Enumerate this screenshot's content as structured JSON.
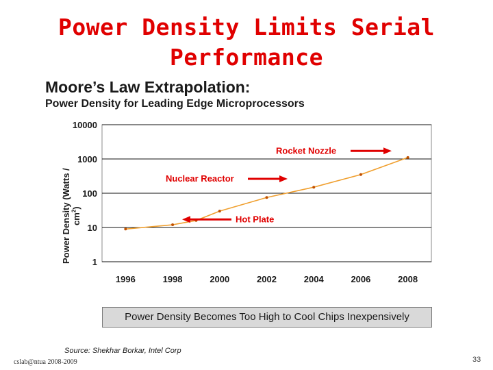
{
  "slide": {
    "title_line1": "Power Density Limits Serial",
    "title_line2": "Performance",
    "footer_left": "cslab@ntua 2008-2009",
    "page_number": "33"
  },
  "chart_data": {
    "type": "line",
    "title": "Moore’s Law Extrapolation:",
    "subtitle": "Power Density for Leading Edge Microprocessors",
    "ylabel": "Power Density (Watts / cm2)",
    "xlabel": "",
    "y_scale": "log",
    "ylim": [
      1,
      10000
    ],
    "xlim": [
      1995,
      2009
    ],
    "y_ticks": [
      10000,
      1000,
      100,
      10,
      1
    ],
    "y_tick_labels": [
      "10000",
      "1000",
      "100",
      "10",
      "1"
    ],
    "x_ticks": [
      1996,
      1998,
      2000,
      2002,
      2004,
      2006,
      2008
    ],
    "x_tick_labels": [
      "1996",
      "1998",
      "2000",
      "2002",
      "2004",
      "2006",
      "2008"
    ],
    "grid": "horizontal",
    "series": [
      {
        "color": "#f0a030",
        "x": [
          1996,
          1998,
          1999,
          2000,
          2002,
          2004,
          2006,
          2008
        ],
        "y": [
          9,
          12,
          16,
          30,
          75,
          150,
          350,
          1100
        ]
      }
    ],
    "annotations": [
      {
        "text": "Rocket Nozzle",
        "arrow": "right",
        "level": 1300
      },
      {
        "text": "Nuclear Reactor",
        "arrow": "right",
        "level": 200
      },
      {
        "text": "Hot Plate",
        "arrow": "left",
        "level": 13
      }
    ],
    "banner": "Power Density Becomes Too High to Cool Chips Inexpensively",
    "source": "Source:  Shekhar Borkar, Intel Corp"
  }
}
